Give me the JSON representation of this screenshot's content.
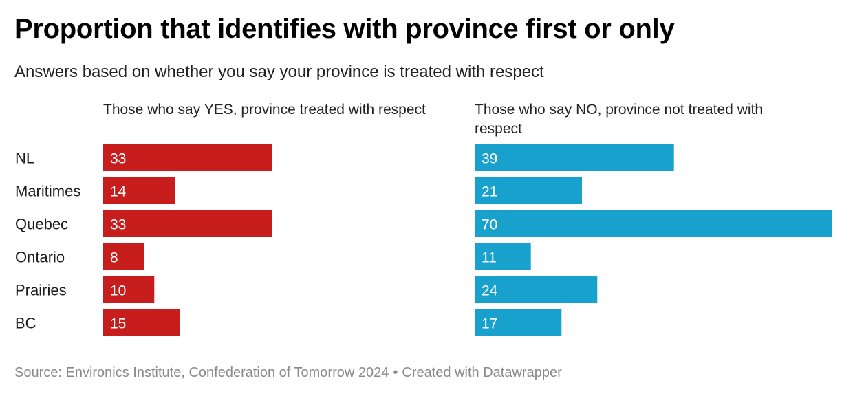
{
  "header": {
    "title": "Proportion that identifies with province first or only",
    "subtitle": "Answers based on whether you say your province is treated with respect"
  },
  "footer": {
    "source": "Source: Environics Institute, Confederation of Tomorrow 2024",
    "separator": "•",
    "credit": "Created with Datawrapper"
  },
  "chart_data": {
    "type": "bar",
    "orientation": "horizontal",
    "categories": [
      "NL",
      "Maritimes",
      "Quebec",
      "Ontario",
      "Prairies",
      "BC"
    ],
    "series": [
      {
        "name": "Those who say YES, province treated with respect",
        "values": [
          33,
          14,
          33,
          8,
          10,
          15
        ],
        "color": "#c71e1d"
      },
      {
        "name": "Those who say NO, province not treated with respect",
        "values": [
          39,
          21,
          70,
          11,
          24,
          17
        ],
        "color": "#18a1cd"
      }
    ],
    "xlim": [
      0,
      70
    ],
    "data_labels": true,
    "grid": false,
    "legend": "none"
  }
}
